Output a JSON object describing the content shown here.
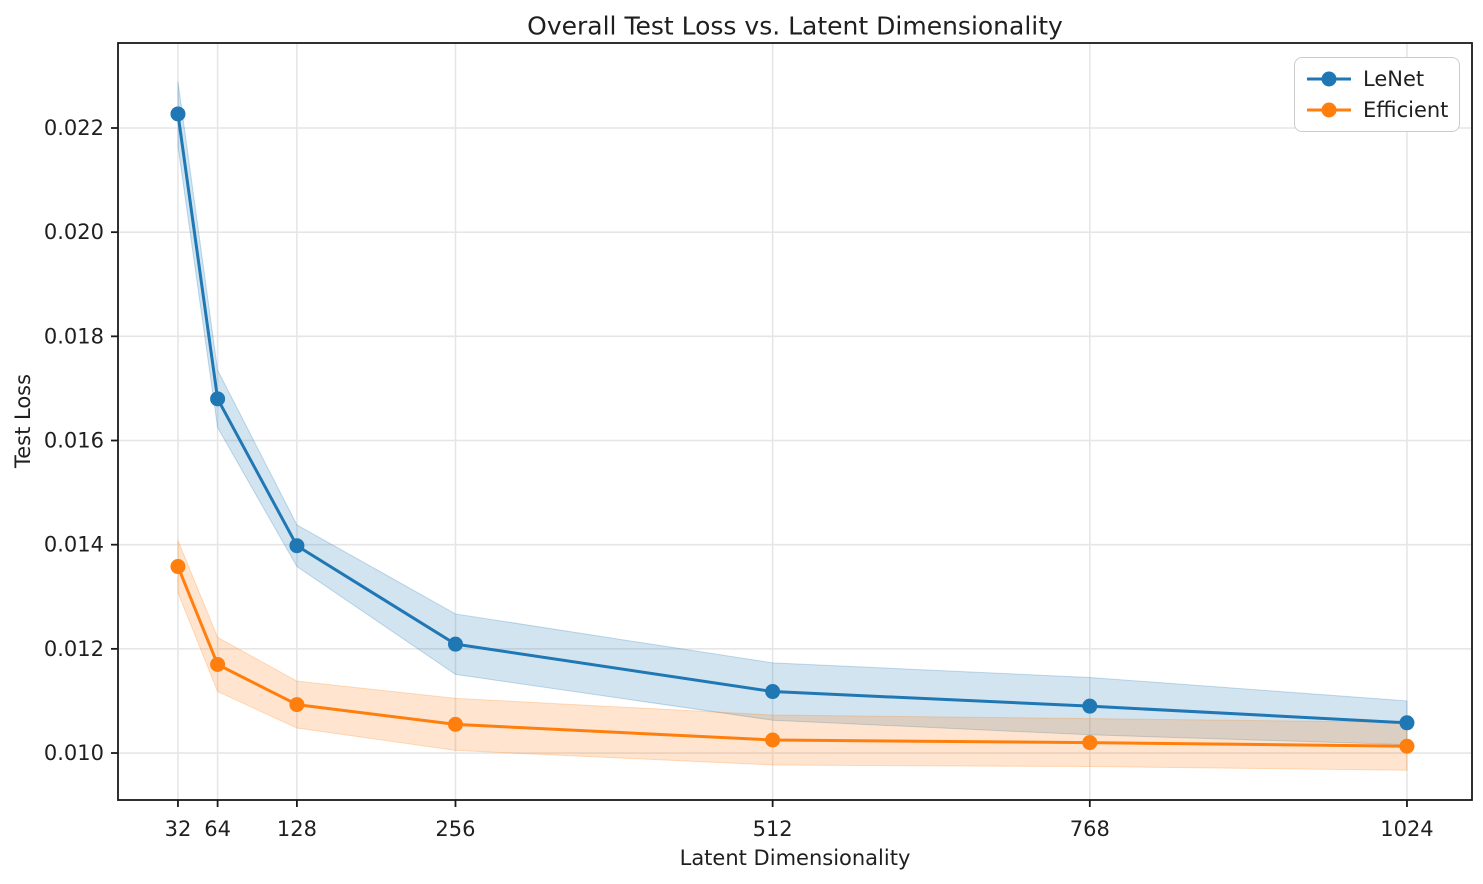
{
  "chart_data": {
    "type": "line",
    "title": "Overall Test Loss vs. Latent Dimensionality",
    "xlabel": "Latent Dimensionality",
    "ylabel": "Test Loss",
    "x": [
      32,
      64,
      128,
      256,
      512,
      768,
      1024
    ],
    "x_tick_labels": [
      "32",
      "64",
      "128",
      "256",
      "512",
      "768",
      "1024"
    ],
    "y_ticks": [
      0.01,
      0.012,
      0.014,
      0.016,
      0.018,
      0.02,
      0.022
    ],
    "y_tick_labels": [
      "0.010",
      "0.012",
      "0.014",
      "0.016",
      "0.018",
      "0.020",
      "0.022"
    ],
    "xlim": [
      -16.4,
      1076.5
    ],
    "ylim": [
      0.009098,
      0.023632
    ],
    "grid": true,
    "legend_position": "upper right",
    "band_alpha": 0.2,
    "series": [
      {
        "name": "LeNet",
        "color": "#1f77b4",
        "values": [
          0.02227,
          0.0168,
          0.01398,
          0.01209,
          0.01118,
          0.0109,
          0.01058
        ],
        "std": [
          0.00062,
          0.00055,
          0.0004,
          0.00058,
          0.00055,
          0.00055,
          0.00042
        ]
      },
      {
        "name": "Efficient",
        "color": "#ff7f0e",
        "values": [
          0.01358,
          0.0117,
          0.01093,
          0.01055,
          0.01025,
          0.0102,
          0.01013
        ],
        "std": [
          0.0005,
          0.00052,
          0.00045,
          0.0005,
          0.00048,
          0.00046,
          0.00046
        ]
      }
    ],
    "style": {
      "grid_color": "#e6e6e6",
      "spine_color": "#1a1a1a",
      "text_color": "#1f1f1f",
      "line_width": 3,
      "marker_radius": 7.5
    }
  }
}
